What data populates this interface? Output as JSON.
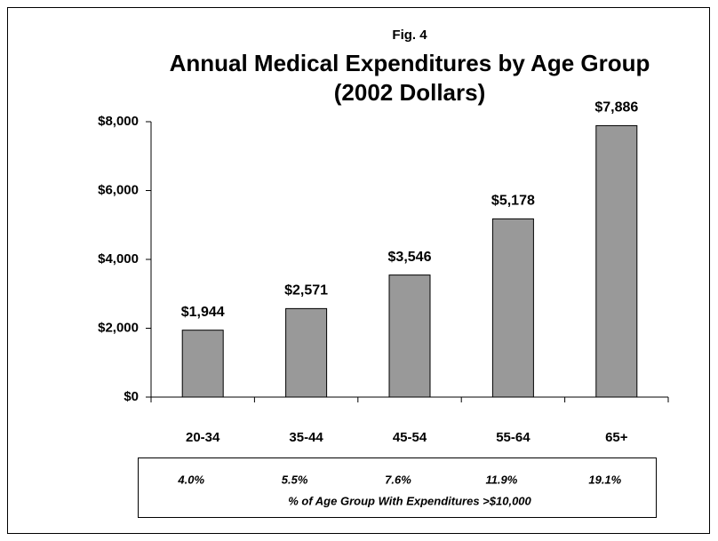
{
  "chart_data": {
    "type": "bar",
    "figure_label": "Fig. 4",
    "title": "Annual Medical Expenditures by Age Group",
    "subtitle": "(2002 Dollars)",
    "categories": [
      "20-34",
      "35-44",
      "45-54",
      "55-64",
      "65+"
    ],
    "values": [
      1944,
      2571,
      3546,
      5178,
      7886
    ],
    "value_labels": [
      "$1,944",
      "$2,571",
      "$3,546",
      "$5,178",
      "$7,886"
    ],
    "color": "#999999",
    "ylim": [
      0,
      8000
    ],
    "yticks": [
      {
        "value": 0,
        "label": "$0"
      },
      {
        "value": 2000,
        "label": "$2,000"
      },
      {
        "value": 4000,
        "label": "$4,000"
      },
      {
        "value": 6000,
        "label": "$6,000"
      },
      {
        "value": 8000,
        "label": "$8,000"
      }
    ],
    "table_row": [
      "4.0%",
      "5.5%",
      "7.6%",
      "11.9%",
      "19.1%"
    ],
    "table_caption": "% of Age Group With Expenditures >$10,000"
  }
}
